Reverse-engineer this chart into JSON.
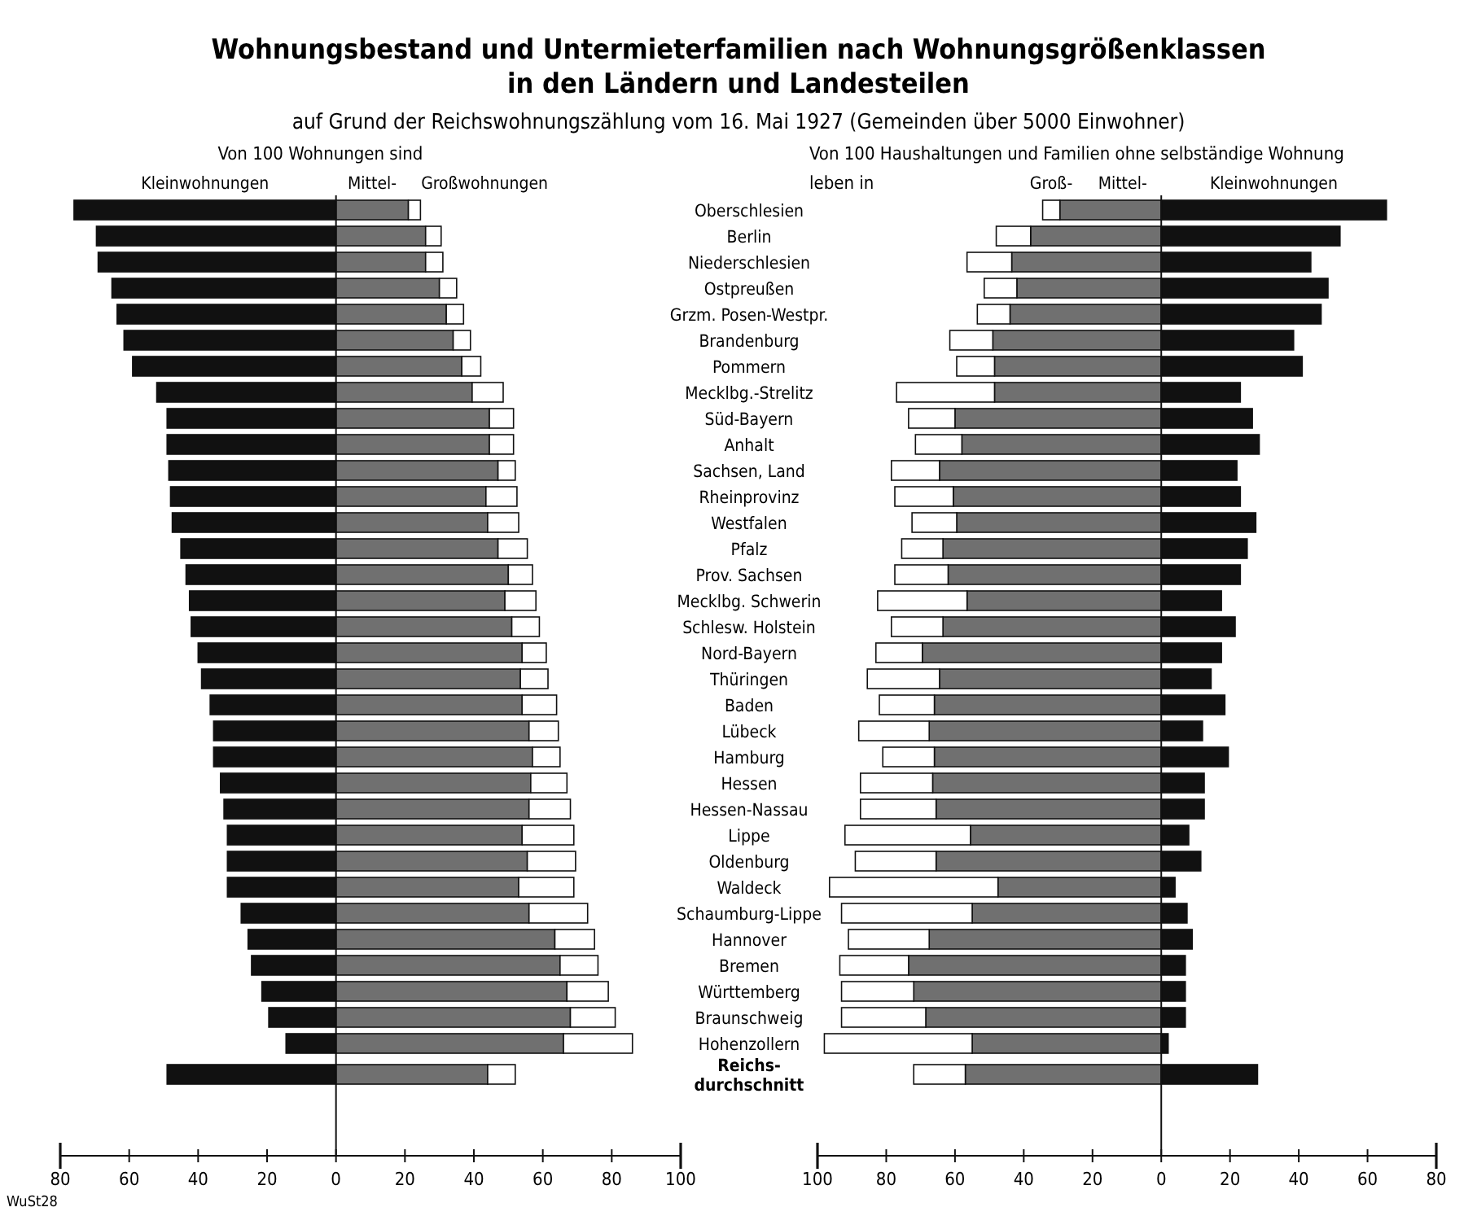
{
  "chart_data": [
    {
      "type": "bar",
      "orientation": "horizontal",
      "stacked": true,
      "title": "Wohnungsbestand und Untermieterfamilien nach Wohnungsgrößenklassen\nin den Ländern und Landesteilen",
      "subtitle": "auf Grund der Reichswohnungszählung vom 16. Mai 1927 (Gemeinden über 5000 Einwohner)",
      "annotations": [
        "Von 100 Wohnungen sind",
        "WuSt28"
      ],
      "categories": [
        "Oberschlesien",
        "Berlin",
        "Niederschlesien",
        "Ostpreußen",
        "Grzm. Posen-Westpr.",
        "Brandenburg",
        "Pommern",
        "Mecklbg.-Strelitz",
        "Süd-Bayern",
        "Anhalt",
        "Sachsen, Land",
        "Rheinprovinz",
        "Westfalen",
        "Pfalz",
        "Prov. Sachsen",
        "Mecklbg. Schwerin",
        "Schlesw. Holstein",
        "Nord-Bayern",
        "Thüringen",
        "Baden",
        "Lübeck",
        "Hamburg",
        "Hessen",
        "Hessen-Nassau",
        "Lippe",
        "Oldenburg",
        "Waldeck",
        "Schaumburg-Lippe",
        "Hannover",
        "Bremen",
        "Württemberg",
        "Braunschweig",
        "Hohenzollern",
        "Reichs-\ndurchschnitt"
      ],
      "series": [
        {
          "name": "Kleinwohnungen",
          "color": "#111111",
          "values": [
            -76,
            -69.5,
            -69,
            -65,
            -63.5,
            -61.5,
            -59,
            -52,
            -49,
            -49,
            -48.5,
            -48,
            -47.5,
            -45,
            -43.5,
            -42.5,
            -42,
            -40,
            -39,
            -36.5,
            -35.5,
            -35.5,
            -33.5,
            -32.5,
            -31.5,
            -31.5,
            -31.5,
            -27.5,
            -25.5,
            -24.5,
            -21.5,
            -19.5,
            -14.5,
            -49
          ]
        },
        {
          "name": "Mittel-",
          "color": "#707070",
          "values": [
            21,
            26,
            26,
            30,
            32,
            34,
            36.5,
            39.5,
            44.5,
            44.5,
            47,
            43.5,
            44,
            47,
            50,
            49,
            51,
            54,
            53.5,
            54,
            56,
            57,
            56.5,
            56,
            54,
            55.5,
            53,
            56,
            63.5,
            65,
            67,
            68,
            66,
            44
          ]
        },
        {
          "name": "Großwohnungen",
          "color": "#ffffff",
          "values": [
            3.5,
            4.5,
            5,
            5,
            5,
            5,
            5.5,
            9,
            7,
            7,
            5,
            9,
            9,
            8.5,
            7,
            9,
            8,
            7,
            8,
            10,
            8.5,
            8,
            10.5,
            12,
            15,
            14,
            16,
            17,
            11.5,
            11,
            12,
            13,
            20,
            8
          ]
        }
      ],
      "xlim": [
        -80,
        100
      ],
      "xticks": [
        {
          "value": -80,
          "label": "80"
        },
        {
          "value": -60,
          "label": "60"
        },
        {
          "value": -40,
          "label": "40"
        },
        {
          "value": -20,
          "label": "20"
        },
        0,
        20,
        40,
        60,
        80,
        100
      ]
    },
    {
      "type": "bar",
      "orientation": "horizontal",
      "stacked": true,
      "title": "Von 100 Haushaltungen und Familien ohne selbständige Wohnung\nleben in",
      "tick_labels": "x",
      "series": [
        {
          "name": "Mittel-",
          "color": "#707070",
          "values": [
            -29.5,
            -38,
            -43.5,
            -42,
            -44,
            -49,
            -48.5,
            -48.5,
            -60,
            -58,
            -64.5,
            -60.5,
            -59.5,
            -63.5,
            -62,
            -56.5,
            -63.5,
            -69.5,
            -64.5,
            -66,
            -67.5,
            -66,
            -66.5,
            -65.5,
            -55.5,
            -65.5,
            -47.5,
            -55,
            -67.5,
            -73.5,
            -72,
            -68.5,
            -55,
            -57
          ]
        },
        {
          "name": "Groß-",
          "color": "#ffffff",
          "values": [
            -5,
            -10,
            -13,
            -9.5,
            -9.5,
            -12.5,
            -11,
            -28.5,
            -13.5,
            -13.5,
            -14,
            -17,
            -13,
            -12,
            -15.5,
            -26,
            -15,
            -13.5,
            -21,
            -16,
            -20.5,
            -15,
            -21,
            -22,
            -36.5,
            -23.5,
            -49,
            -38,
            -23.5,
            -20,
            -21,
            -24.5,
            -43,
            -15
          ]
        },
        {
          "name": "Kleinwohnungen",
          "color": "#111111",
          "values": [
            65.5,
            52,
            43.5,
            48.5,
            46.5,
            38.5,
            41,
            23,
            26.5,
            28.5,
            22,
            23,
            27.5,
            25,
            23,
            17.5,
            21.5,
            17.5,
            14.5,
            18.5,
            12,
            19.5,
            12.5,
            12.5,
            8,
            11.5,
            4,
            7.5,
            9,
            7,
            7,
            7,
            2,
            28
          ]
        }
      ],
      "xlim": [
        -100,
        80
      ],
      "xticks": [
        {
          "value": -100,
          "label": "100"
        },
        {
          "value": -80,
          "label": "80"
        },
        {
          "value": -60,
          "label": "60"
        },
        {
          "value": -40,
          "label": "40"
        },
        {
          "value": -20,
          "label": "20"
        },
        0,
        20,
        40,
        60,
        80
      ]
    }
  ]
}
